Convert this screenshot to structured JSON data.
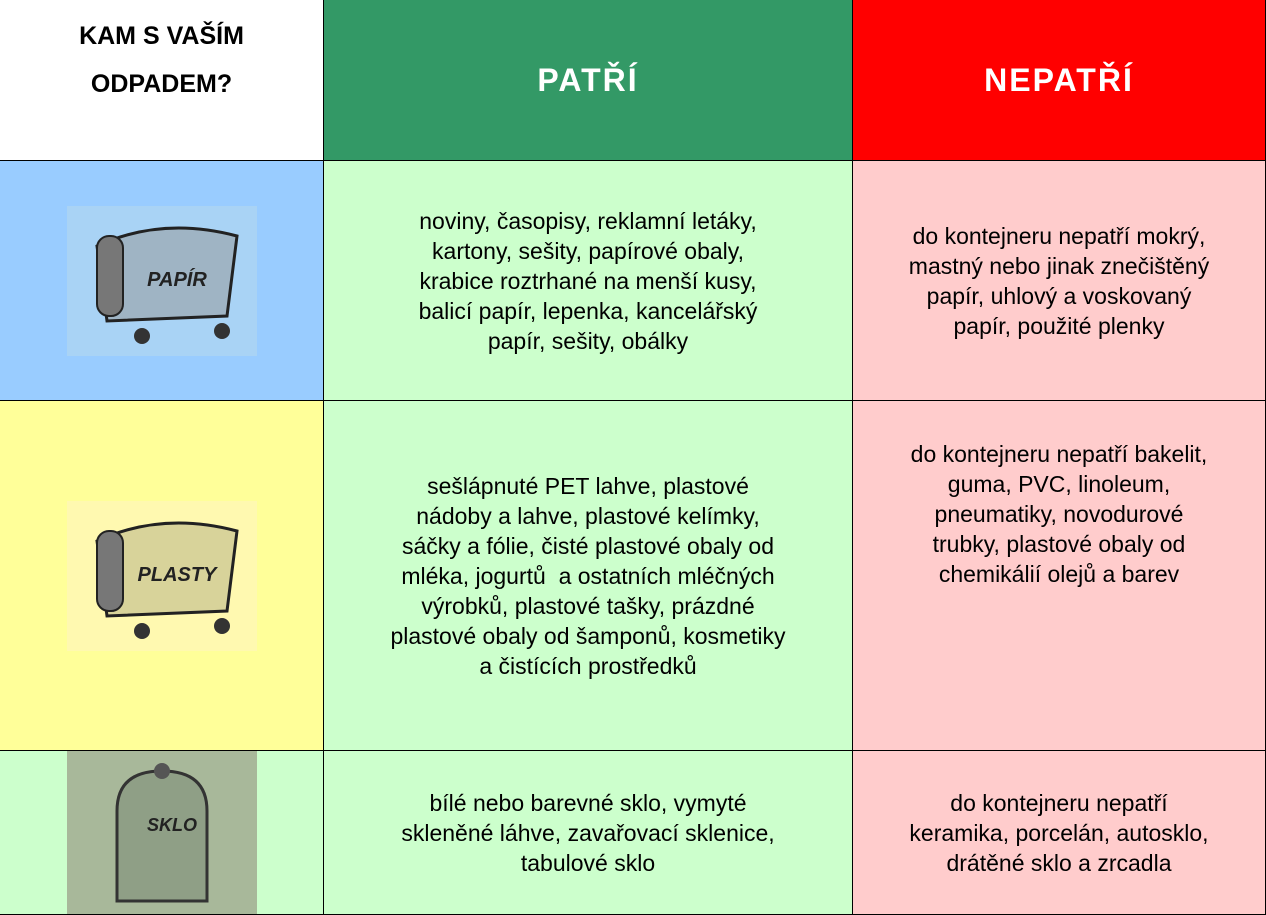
{
  "header": {
    "title": "KAM S VAŠÍM ODPADEM?",
    "belongs": "PATŘÍ",
    "not_belongs": "NEPATŘÍ"
  },
  "rows": [
    {
      "bin": "PAPÍR",
      "belongs": [
        "noviny, časopisy, reklamní letáky,",
        "kartony, sešity, papírové obaly,",
        "krabice roztrhané na menší kusy,",
        "balicí papír, lepenka, kancelářský",
        "papír, sešity, obálky"
      ],
      "not_belongs": [
        "do kontejneru nepatří mokrý,",
        "mastný nebo jinak znečištěný",
        "papír, uhlový a voskovaný",
        "papír, použité plenky"
      ]
    },
    {
      "bin": "PLASTY",
      "belongs": [
        "sešlápnuté PET lahve, plastové",
        "nádoby a lahve, plastové kelímky,",
        "sáčky a fólie, čisté plastové obaly od",
        "mléka, jogurtů  a ostatních mléčných",
        "výrobků, plastové tašky, prázdné",
        "plastové obaly od šamponů, kosmetiky",
        "a čistících prostředků"
      ],
      "not_belongs": [
        "do kontejneru nepatří bakelit,",
        "guma, PVC, linoleum,",
        "pneumatiky, novodurové",
        "trubky, plastové obaly od",
        "chemikálií olejů a barev"
      ]
    },
    {
      "bin": "SKLO",
      "belongs": [
        "bílé nebo barevné sklo, vymyté",
        "skleněné láhve, zavařovací sklenice,",
        "tabulové sklo"
      ],
      "not_belongs": [
        "do kontejneru nepatří",
        "keramika, porcelán, autosklo,",
        "drátěné sklo a zrcadla"
      ]
    }
  ]
}
